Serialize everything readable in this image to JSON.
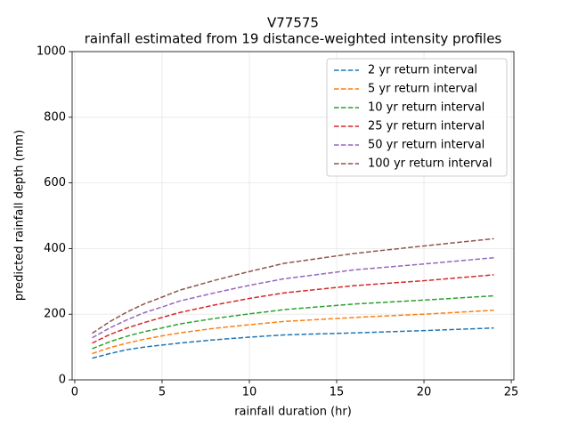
{
  "chart_data": {
    "type": "line",
    "title": "V77575",
    "subtitle": "rainfall estimated from 19 distance-weighted intensity profiles",
    "x_label": "rainfall duration (hr)",
    "y_label": "predicted rainfall depth (mm)",
    "x": [
      1,
      2,
      3,
      4,
      5,
      6,
      8,
      10,
      12,
      16,
      20,
      24
    ],
    "series": [
      {
        "name": "2 yr return interval",
        "color": "#1f77b4",
        "values": [
          66,
          80,
          92,
          100,
          106,
          112,
          122,
          130,
          137,
          143,
          150,
          158
        ]
      },
      {
        "name": "5 yr return interval",
        "color": "#ff7f0e",
        "values": [
          80,
          98,
          112,
          124,
          134,
          143,
          157,
          168,
          178,
          190,
          200,
          212
        ]
      },
      {
        "name": "10 yr return interval",
        "color": "#2ca02c",
        "values": [
          95,
          116,
          133,
          147,
          158,
          170,
          187,
          201,
          214,
          231,
          243,
          256
        ]
      },
      {
        "name": "25 yr return interval",
        "color": "#d62728",
        "values": [
          112,
          138,
          158,
          175,
          190,
          205,
          228,
          248,
          265,
          287,
          302,
          320
        ]
      },
      {
        "name": "50 yr return interval",
        "color": "#9467bd",
        "values": [
          128,
          158,
          183,
          205,
          222,
          240,
          265,
          288,
          308,
          335,
          353,
          372
        ]
      },
      {
        "name": "100 yr return interval",
        "color": "#8c564b",
        "values": [
          142,
          177,
          207,
          232,
          252,
          273,
          303,
          330,
          355,
          385,
          408,
          430
        ]
      }
    ],
    "xlim": [
      -0.15,
      25.15
    ],
    "xticks": [
      0,
      5,
      10,
      15,
      20,
      25
    ],
    "ylim": [
      0,
      1000
    ],
    "yticks": [
      0,
      200,
      400,
      600,
      800,
      1000
    ],
    "grid": true,
    "line_style": "dashed",
    "legend_position": "upper right"
  }
}
